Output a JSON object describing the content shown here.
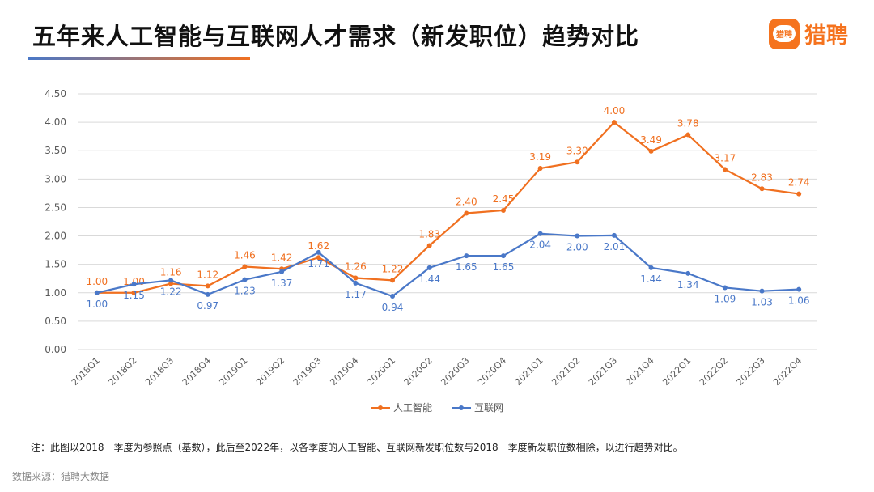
{
  "header": {
    "title": "五年来人工智能与互联网人才需求（新发职位）趋势对比",
    "logo_text": "猎聘",
    "logo_badge": "猎聘"
  },
  "chart_data": {
    "type": "line",
    "title": "",
    "categories": [
      "2018Q1",
      "2018Q2",
      "2018Q3",
      "2018Q4",
      "2019Q1",
      "2019Q2",
      "2019Q3",
      "2019Q4",
      "2020Q1",
      "2020Q2",
      "2020Q3",
      "2020Q4",
      "2021Q1",
      "2021Q2",
      "2021Q3",
      "2021Q4",
      "2022Q1",
      "2022Q2",
      "2022Q3",
      "2022Q4"
    ],
    "ylim": [
      0,
      4.5
    ],
    "yticks": [
      "0.00",
      "0.50",
      "1.00",
      "1.50",
      "2.00",
      "2.50",
      "3.00",
      "3.50",
      "4.00",
      "4.50"
    ],
    "grid": true,
    "legend": "bottom",
    "series": [
      {
        "name": "人工智能",
        "color": "#f07020",
        "values": [
          1.0,
          1.0,
          1.16,
          1.12,
          1.46,
          1.42,
          1.62,
          1.26,
          1.22,
          1.83,
          2.4,
          2.45,
          3.19,
          3.3,
          4.0,
          3.49,
          3.78,
          3.17,
          2.83,
          2.74
        ]
      },
      {
        "name": "互联网",
        "color": "#4a78c8",
        "values": [
          1.0,
          1.15,
          1.22,
          0.97,
          1.23,
          1.37,
          1.71,
          1.17,
          0.94,
          1.44,
          1.65,
          1.65,
          2.04,
          2.0,
          2.01,
          1.44,
          1.34,
          1.09,
          1.03,
          1.06
        ]
      }
    ]
  },
  "footer": {
    "note": "注：此图以2018一季度为参照点（基数），此后至2022年，以各季度的人工智能、互联网新发职位数与2018一季度新发职位数相除，以进行趋势对比。",
    "source": "数据来源：猎聘大数据"
  }
}
